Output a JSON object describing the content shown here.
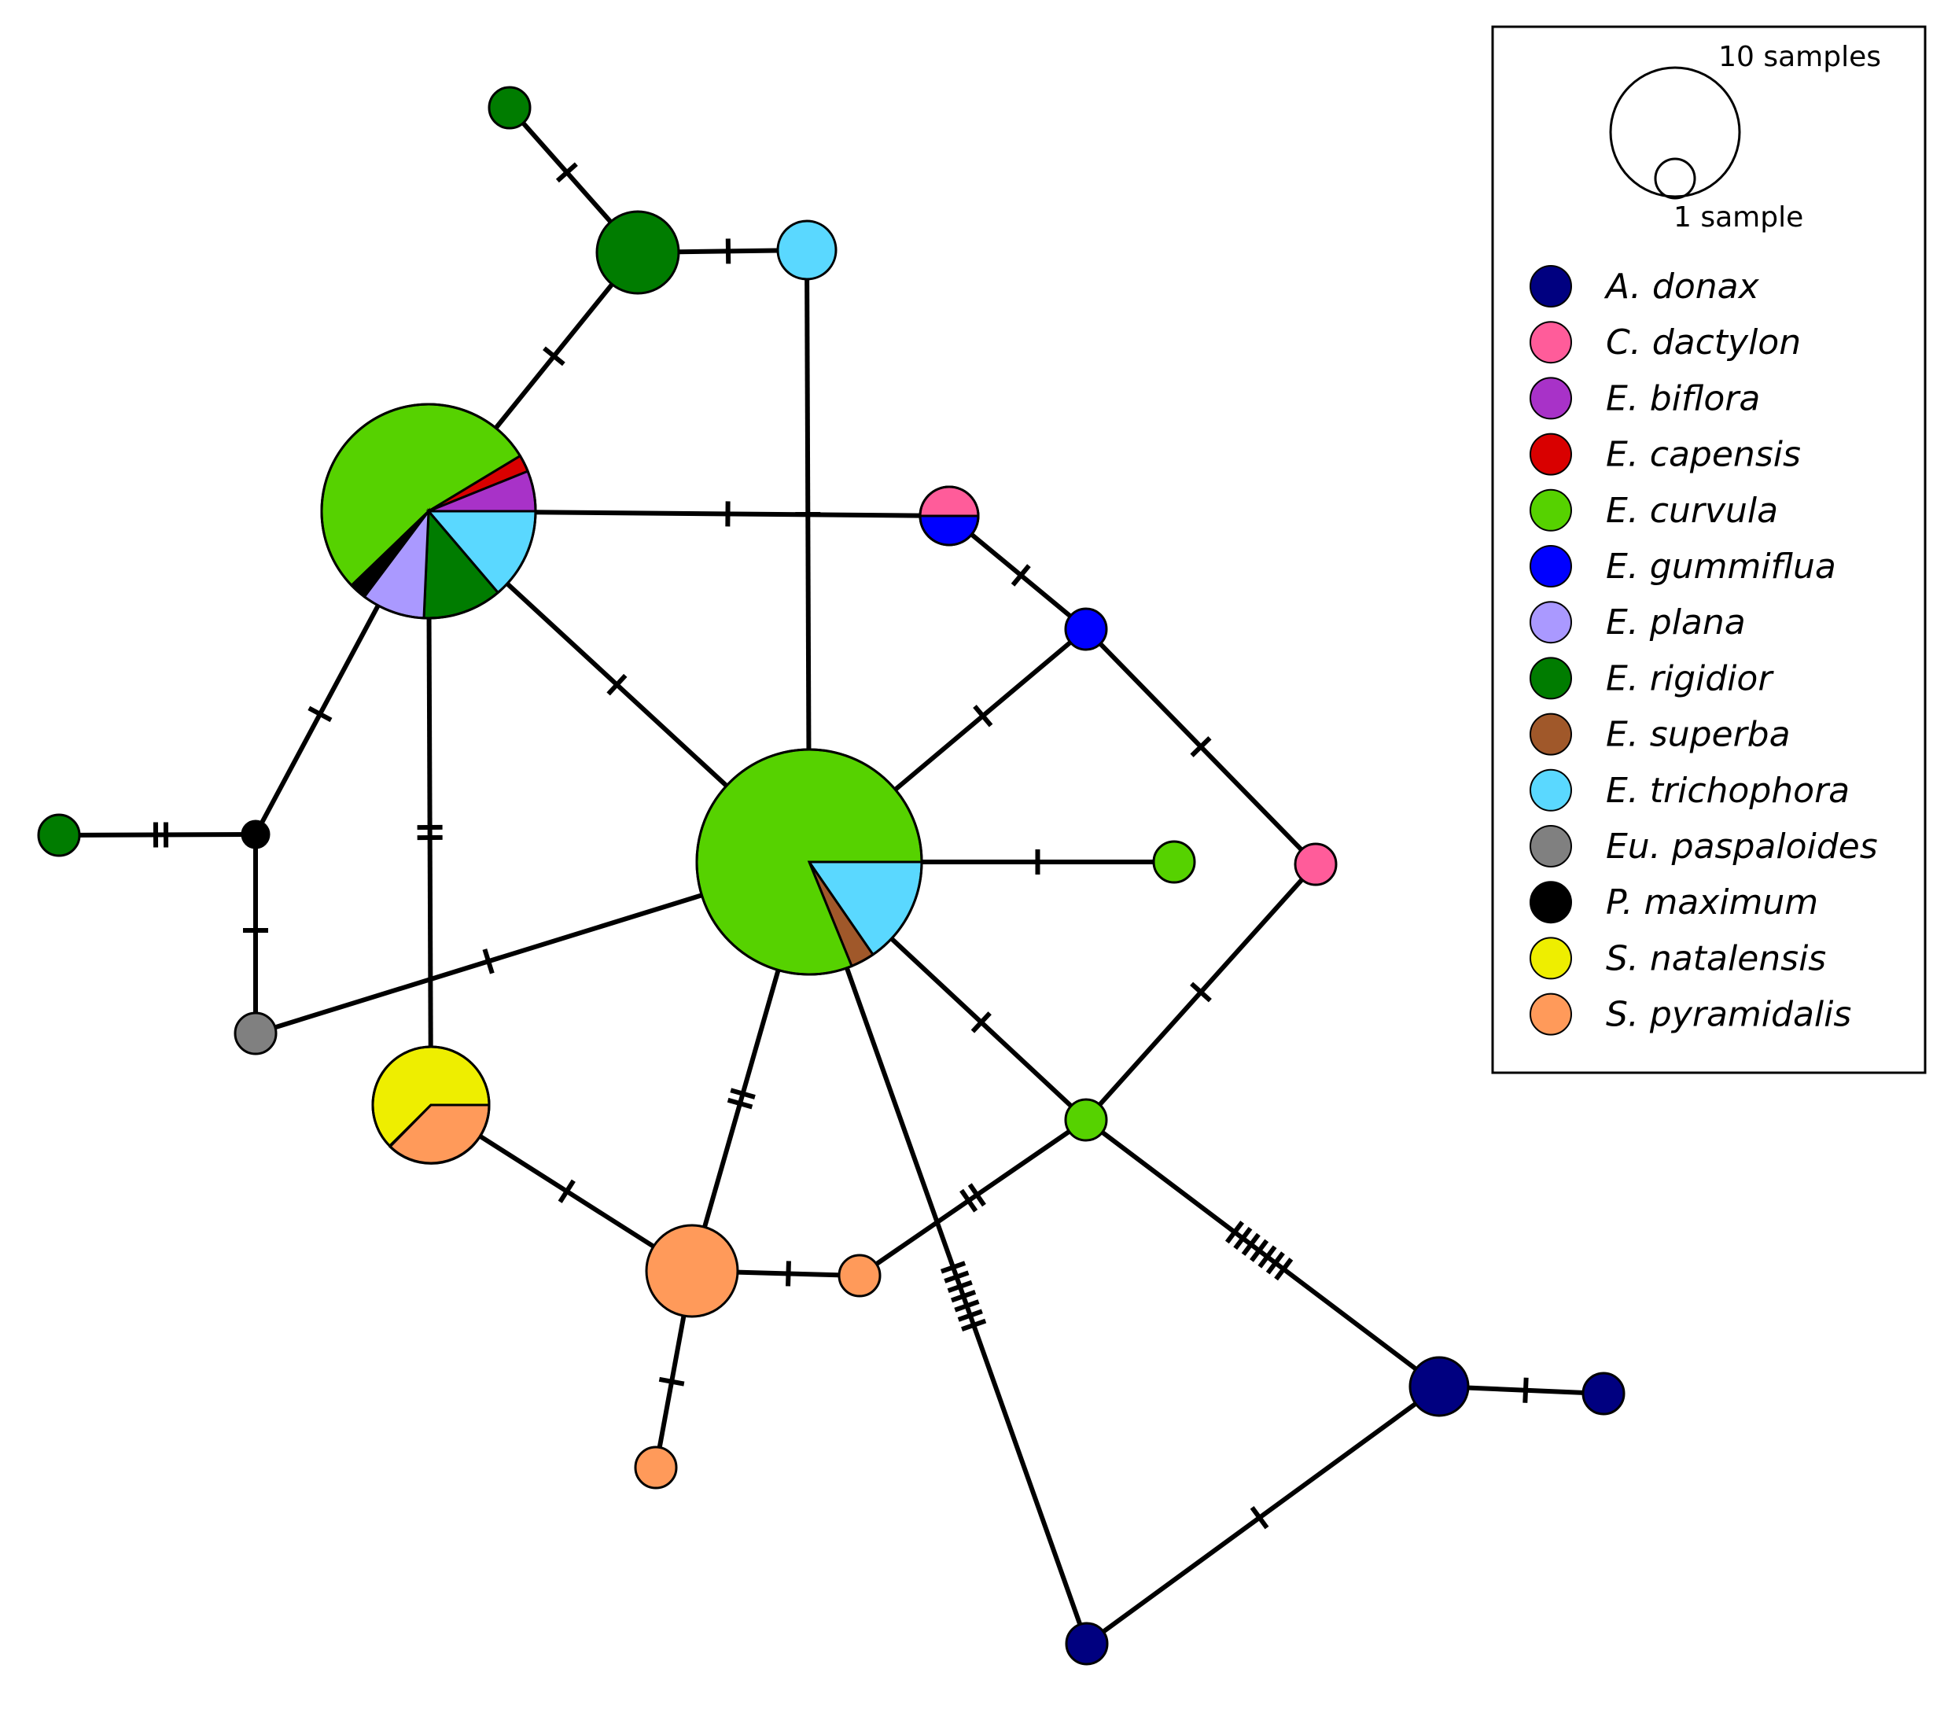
{
  "colors": {
    "A. donax": "#000080",
    "C. dactylon": "#ff5c9a",
    "E. biflora": "#a832c8",
    "E. capensis": "#d90000",
    "E. curvula": "#56d200",
    "E. gummiflua": "#0000ff",
    "E. plana": "#aa99ff",
    "E. rigidior": "#007c00",
    "E. superba": "#a0582a",
    "E. trichophora": "#5ad8ff",
    "Eu. paspaloides": "#808080",
    "P. maximum": "#000000",
    "S. natalensis": "#eeee00",
    "S. pyramidalis": "#ff9a5a"
  },
  "legend": {
    "scale_large_label": "10 samples",
    "scale_small_label": "1 sample",
    "items": [
      {
        "label": "A. donax",
        "color": "#000080"
      },
      {
        "label": "C. dactylon",
        "color": "#ff5c9a"
      },
      {
        "label": "E. biflora",
        "color": "#a832c8"
      },
      {
        "label": "E. capensis",
        "color": "#d90000"
      },
      {
        "label": "E. curvula",
        "color": "#56d200"
      },
      {
        "label": "E. gummiflua",
        "color": "#0000ff"
      },
      {
        "label": "E. plana",
        "color": "#aa99ff"
      },
      {
        "label": "E. rigidior",
        "color": "#007c00"
      },
      {
        "label": "E. superba",
        "color": "#a0582a"
      },
      {
        "label": "E. trichophora",
        "color": "#5ad8ff"
      },
      {
        "label": "Eu. paspaloides",
        "color": "#808080"
      },
      {
        "label": "P. maximum",
        "color": "#000000"
      },
      {
        "label": "S. natalensis",
        "color": "#eeee00"
      },
      {
        "label": "S. pyramidalis",
        "color": "#ff9a5a"
      }
    ]
  },
  "haplotypes": [
    {
      "id": "rig-top",
      "composition": [
        {
          "species": "E. rigidior",
          "count": 1
        }
      ]
    },
    {
      "id": "rig-big",
      "composition": [
        {
          "species": "E. rigidior",
          "count": 4
        }
      ]
    },
    {
      "id": "tri-top",
      "composition": [
        {
          "species": "E. trichophora",
          "count": 2
        }
      ]
    },
    {
      "id": "mixed-hub",
      "composition": [
        {
          "species": "E. curvula",
          "count": 13
        },
        {
          "species": "E. capensis",
          "count": 0.4
        },
        {
          "species": "E. biflora",
          "count": 1
        },
        {
          "species": "E. trichophora",
          "count": 3.3
        },
        {
          "species": "E. rigidior",
          "count": 2.1
        },
        {
          "species": "E. plana",
          "count": 1.6
        },
        {
          "species": "P. maximum",
          "count": 0.4
        }
      ]
    },
    {
      "id": "cyn-gum",
      "composition": [
        {
          "species": "C. dactylon",
          "count": 1
        },
        {
          "species": "E. gummiflua",
          "count": 1
        }
      ]
    },
    {
      "id": "gum",
      "composition": [
        {
          "species": "E. gummiflua",
          "count": 1
        }
      ]
    },
    {
      "id": "curv-center",
      "composition": [
        {
          "species": "E. curvula",
          "count": 24.2
        },
        {
          "species": "E. trichophora",
          "count": 5
        },
        {
          "species": "E. superba",
          "count": 0.8
        }
      ]
    },
    {
      "id": "curv-right",
      "composition": [
        {
          "species": "E. curvula",
          "count": 1
        }
      ]
    },
    {
      "id": "cyn-right",
      "composition": [
        {
          "species": "C. dactylon",
          "count": 1
        }
      ]
    },
    {
      "id": "rig-left",
      "composition": [
        {
          "species": "E. rigidior",
          "count": 1
        }
      ]
    },
    {
      "id": "pmax",
      "composition": [
        {
          "species": "P. maximum",
          "count": 0.3
        }
      ]
    },
    {
      "id": "eup",
      "composition": [
        {
          "species": "Eu. paspaloides",
          "count": 1
        }
      ]
    },
    {
      "id": "setaria",
      "composition": [
        {
          "species": "S. natalensis",
          "count": 3
        },
        {
          "species": "S. pyramidalis",
          "count": 2
        }
      ]
    },
    {
      "id": "curv-lower",
      "composition": [
        {
          "species": "E. curvula",
          "count": 1
        }
      ]
    },
    {
      "id": "pyr-big",
      "composition": [
        {
          "species": "S. pyramidalis",
          "count": 3
        }
      ]
    },
    {
      "id": "pyr-small",
      "composition": [
        {
          "species": "S. pyramidalis",
          "count": 1
        }
      ]
    },
    {
      "id": "pyr-bottom",
      "composition": [
        {
          "species": "S. pyramidalis",
          "count": 1
        }
      ]
    },
    {
      "id": "don-big",
      "composition": [
        {
          "species": "A. donax",
          "count": 2
        }
      ]
    },
    {
      "id": "don-right",
      "composition": [
        {
          "species": "A. donax",
          "count": 1
        }
      ]
    },
    {
      "id": "don-bottom",
      "composition": [
        {
          "species": "A. donax",
          "count": 1
        }
      ]
    }
  ],
  "links": [
    {
      "from": "rig-top",
      "to": "rig-big",
      "mutations": 1
    },
    {
      "from": "rig-big",
      "to": "tri-top",
      "mutations": 1
    },
    {
      "from": "rig-big",
      "to": "mixed-hub",
      "mutations": 1
    },
    {
      "from": "tri-top",
      "to": "curv-center",
      "mutations": 1
    },
    {
      "from": "mixed-hub",
      "to": "cyn-gum",
      "mutations": 1
    },
    {
      "from": "mixed-hub",
      "to": "curv-center",
      "mutations": 1
    },
    {
      "from": "mixed-hub",
      "to": "pmax",
      "mutations": 1
    },
    {
      "from": "mixed-hub",
      "to": "setaria",
      "mutations": 2
    },
    {
      "from": "cyn-gum",
      "to": "gum",
      "mutations": 1
    },
    {
      "from": "gum",
      "to": "curv-center",
      "mutations": 1
    },
    {
      "from": "gum",
      "to": "cyn-right",
      "mutations": 1
    },
    {
      "from": "curv-center",
      "to": "curv-right",
      "mutations": 1
    },
    {
      "from": "curv-center",
      "to": "eup",
      "mutations": 1
    },
    {
      "from": "curv-center",
      "to": "curv-lower",
      "mutations": 1
    },
    {
      "from": "curv-center",
      "to": "pyr-big",
      "mutations": 2
    },
    {
      "from": "curv-center",
      "to": "don-bottom",
      "mutations": 7
    },
    {
      "from": "cyn-right",
      "to": "curv-lower",
      "mutations": 1
    },
    {
      "from": "rig-left",
      "to": "pmax",
      "mutations": 2
    },
    {
      "from": "pmax",
      "to": "eup",
      "mutations": 1
    },
    {
      "from": "setaria",
      "to": "pyr-big",
      "mutations": 1
    },
    {
      "from": "pyr-big",
      "to": "pyr-small",
      "mutations": 1
    },
    {
      "from": "pyr-big",
      "to": "pyr-bottom",
      "mutations": 1
    },
    {
      "from": "pyr-small",
      "to": "curv-lower",
      "mutations": 2
    },
    {
      "from": "curv-lower",
      "to": "don-big",
      "mutations": 7
    },
    {
      "from": "don-big",
      "to": "don-right",
      "mutations": 1
    },
    {
      "from": "don-big",
      "to": "don-bottom",
      "mutations": 1
    }
  ]
}
